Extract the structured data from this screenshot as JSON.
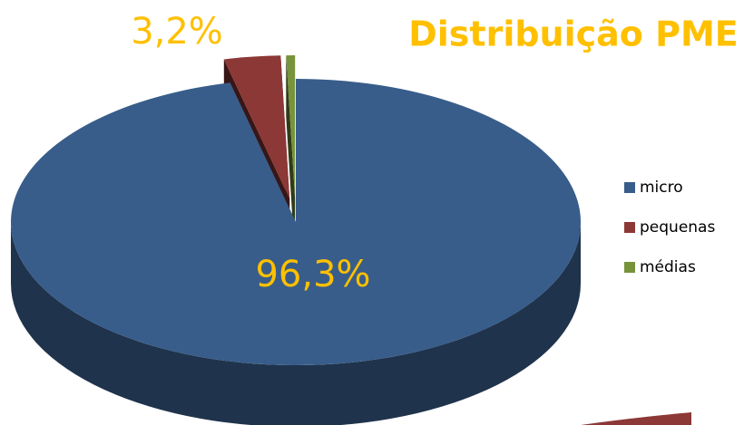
{
  "chart_data": {
    "type": "pie",
    "title": "Distribuição PME",
    "categories": [
      "micro",
      "pequenas",
      "médias"
    ],
    "values": [
      96.3,
      3.2,
      0.5
    ],
    "value_labels": [
      "96,3%",
      "3,2%",
      null
    ],
    "colors": [
      "#385d8a",
      "#8c3836",
      "#77933c"
    ],
    "label_color": "#ffc000",
    "legend": "right"
  }
}
